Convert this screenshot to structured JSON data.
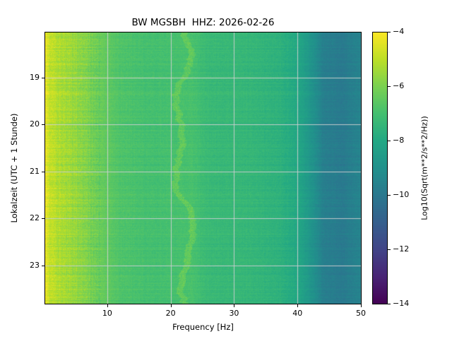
{
  "chart_data": {
    "type": "heatmap",
    "title": "BW MGSBH  HHZ: 2026-02-26",
    "xlabel": "Frequency [Hz]",
    "ylabel": "Lokalzeit (UTC + 1 Stunde)",
    "colorbar_label": "Log10(Sqrt(m**2/s**2/Hz))",
    "colormap": "viridis",
    "grid": true,
    "grid_color": "#d0d0d0",
    "xlim": [
      0.1,
      50
    ],
    "ylim_hours": [
      18.03,
      23.81
    ],
    "xticks": [
      10,
      20,
      30,
      40,
      50
    ],
    "yticks": [
      19,
      20,
      21,
      22,
      23
    ],
    "colorbar_ticks": [
      -4,
      -6,
      -8,
      -10,
      -12,
      -14
    ],
    "colorbar_range": [
      -14,
      -4
    ],
    "value_profile": [
      {
        "freq": 0.1,
        "value": -4.3
      },
      {
        "freq": 0.8,
        "value": -4.8
      },
      {
        "freq": 2.0,
        "value": -5.2
      },
      {
        "freq": 5.0,
        "value": -5.6
      },
      {
        "freq": 8.0,
        "value": -6.2
      },
      {
        "freq": 12.0,
        "value": -6.8
      },
      {
        "freq": 16.0,
        "value": -7.0
      },
      {
        "freq": 20.0,
        "value": -7.0
      },
      {
        "freq": 23.0,
        "value": -6.9
      },
      {
        "freq": 26.0,
        "value": -7.3
      },
      {
        "freq": 32.0,
        "value": -7.4
      },
      {
        "freq": 37.0,
        "value": -7.6
      },
      {
        "freq": 40.0,
        "value": -8.0
      },
      {
        "freq": 42.0,
        "value": -8.8
      },
      {
        "freq": 44.0,
        "value": -9.7
      },
      {
        "freq": 47.0,
        "value": -9.9
      },
      {
        "freq": 50.0,
        "value": -9.5
      }
    ],
    "features": [
      {
        "name": "wavy-trace",
        "freq_center": 22,
        "half_width": 0.5,
        "brighten": 0.5
      }
    ]
  }
}
